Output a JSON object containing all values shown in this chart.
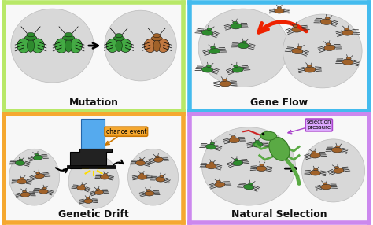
{
  "panels": [
    {
      "title": "Mutation",
      "color": "#b8e868",
      "text_color": "#000000",
      "border": "#a0d840"
    },
    {
      "title": "Gene Flow",
      "color": "#44bbee",
      "text_color": "#000000",
      "border": "#22aadd"
    },
    {
      "title": "Genetic Drift",
      "color": "#f5a830",
      "text_color": "#000000",
      "border": "#e09020"
    },
    {
      "title": "Natural Selection",
      "color": "#cc88ee",
      "text_color": "#000000",
      "border": "#bb66dd"
    }
  ],
  "bg_white": "#ffffff",
  "oval_color": "#d8d8d8",
  "oval_edge": "#cccccc",
  "green_body": "#2e8b2e",
  "green_wing": "#44aa44",
  "brown_body": "#a0622a",
  "brown_wing": "#c07840",
  "red_arrow": "#ee2200",
  "black_arrow": "#111111",
  "chance_box_bg": "#f5a830",
  "chance_box_edge": "#cc7700",
  "selection_box_bg": "#ddaaff",
  "selection_box_edge": "#aa44cc",
  "title_fontsize": 9,
  "label_fontsize": 5.5
}
